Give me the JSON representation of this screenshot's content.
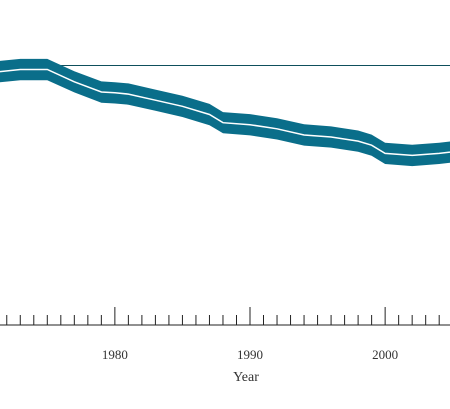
{
  "chart_data": {
    "type": "line",
    "title": "",
    "xlabel": "Year",
    "ylabel": "",
    "x_ticks": [
      1980,
      1990,
      2000
    ],
    "x_range": [
      1971.5,
      2004.8
    ],
    "y_range": [
      0,
      1
    ],
    "reference_line": {
      "y": 0.84,
      "color": "#0e4f5c"
    },
    "series": [
      {
        "x": [
          1971.5,
          1973,
          1975,
          1977,
          1979,
          1980,
          1981,
          1983,
          1985,
          1987,
          1988,
          1990,
          1992,
          1994,
          1996,
          1998,
          1999,
          2000,
          2002,
          2004,
          2004.8
        ],
        "y": [
          0.825,
          0.83,
          0.83,
          0.8,
          0.775,
          0.773,
          0.77,
          0.755,
          0.74,
          0.72,
          0.7,
          0.695,
          0.685,
          0.67,
          0.665,
          0.655,
          0.645,
          0.625,
          0.62,
          0.625,
          0.628
        ],
        "band": 0.052,
        "band_color": "#0a6e8a",
        "line_color": "#ffffff"
      }
    ],
    "grid": false,
    "legend": "none"
  }
}
